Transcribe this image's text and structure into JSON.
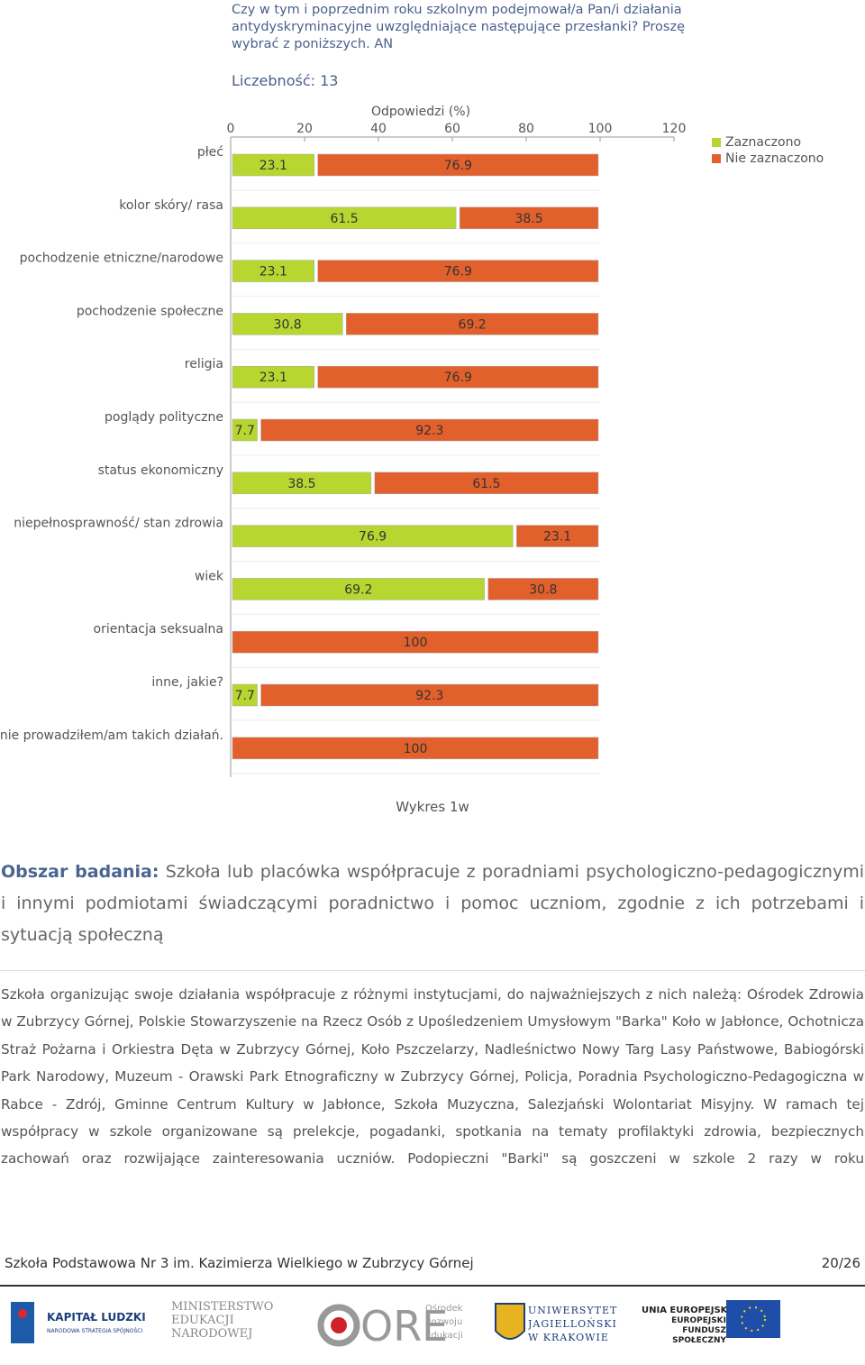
{
  "chart_data": {
    "type": "stacked-bar-horizontal",
    "title": "Czy w tym i poprzednim roku szkolnym podejmował/a Pan/i działania antydyskryminacyjne uwzględniające następujące przesłanki? Proszę wybrać z poniższych. AN",
    "subtitle": "Liczebność: 13",
    "x_label": "Odpowiedzi (%)",
    "categories": [
      "płeć",
      "kolor skóry/ rasa",
      "pochodzenie etniczne/narodowe",
      "pochodzenie społeczne",
      "religia",
      "poglądy polityczne",
      "status ekonomiczny",
      "niepełnosprawność/ stan zdrowia",
      "wiek",
      "orientacja seksualna",
      "inne, jakie?",
      "nie prowadziłem/am takich działań."
    ],
    "series": [
      {
        "name": "Zaznaczono",
        "color": "#b8d630",
        "values": [
          23.1,
          61.5,
          23.1,
          30.8,
          23.1,
          7.7,
          38.5,
          76.9,
          69.2,
          0,
          7.7,
          0
        ]
      },
      {
        "name": "Nie zaznaczono",
        "color": "#e2602c",
        "values": [
          76.9,
          38.5,
          76.9,
          69.2,
          76.9,
          92.3,
          61.5,
          23.1,
          30.8,
          100,
          92.3,
          100
        ]
      }
    ],
    "xlim": [
      0,
      120
    ],
    "xticks": [
      0,
      20,
      40,
      60,
      80,
      100,
      120
    ],
    "legend": "top-right"
  },
  "caption": "Wykres 1w",
  "section": {
    "label": "Obszar badania:",
    "text": "Szkoła lub placówka współpracuje z poradniami psychologiczno-pedagogicznymi i innymi podmiotami świadczącymi poradnictwo i pomoc uczniom, zgodnie z ich potrzebami i sytuacją społeczną"
  },
  "paragraph": "Szkoła organizując swoje działania współpracuje z różnymi instytucjami, do najważniejszych z nich należą: Ośrodek Zdrowia w Zubrzycy Górnej, Polskie Stowarzyszenie na Rzecz Osób z Upośledzeniem Umysłowym \"Barka\" Koło w Jabłonce, Ochotnicza Straż Pożarna i Orkiestra Dęta w Zubrzycy Górnej, Koło Pszczelarzy, Nadleśnictwo Nowy Targ Lasy Państwowe, Babiogórski Park Narodowy, Muzeum - Orawski Park Etnograficzny w Zubrzycy Górnej, Policja, Poradnia Psychologiczno-Pedagogiczna w Rabce - Zdrój, Gminne Centrum Kultury w Jabłonce, Szkoła Muzyczna, Salezjański Wolontariat Misyjny. W ramach tej współpracy w szkole organizowane są prelekcje, pogadanki, spotkania na tematy profilaktyki zdrowia, bezpiecznych zachowań oraz rozwijające zainteresowania uczniów. Podopieczni \"Barki\" są goszczeni w szkole 2 razy w roku",
  "footer": {
    "school": "Szkoła Podstawowa Nr 3 im. Kazimierza Wielkiego w Zubrzycy Górnej",
    "page": "20/26"
  },
  "logos": {
    "kl_title": "KAPITAŁ LUDZKI",
    "kl_sub": "NARODOWA STRATEGIA SPÓJNOŚCI",
    "men": "MINISTERSTWO EDUKACJI NARODOWEJ",
    "ore": "ORE",
    "ore_sub": "Ośrodek Rozwoju Edukacji",
    "uj": "UNIWERSYTET JAGIELLOŃSKI W KRAKOWIE",
    "ue": "UNIA EUROPEJSKA",
    "efs": "EUROPEJSKI FUNDUSZ SPOŁECZNY"
  }
}
